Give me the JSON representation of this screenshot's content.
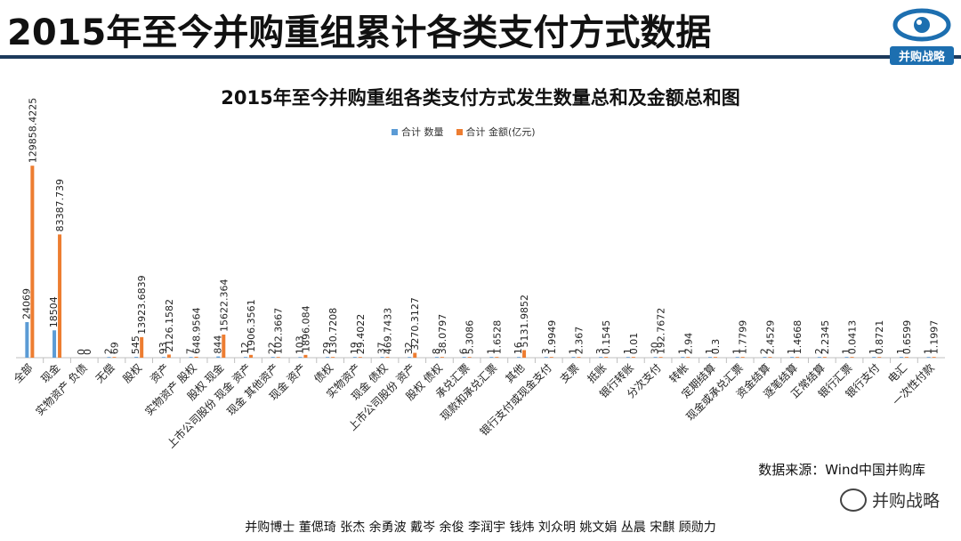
{
  "header": {
    "title": "2015年至今并购重组累计各类支付方式数据",
    "logo_text": "并购战略"
  },
  "source_text": "数据来源：Wind中国并购库",
  "watermark_text": "并购战略",
  "credits_text": "并购博士 董偲琦 张杰 余勇波 戴岑 余俊 李润宇 钱炜 刘众明 姚文娟 丛晨 宋麒 顾勋力",
  "colors": {
    "count": "#5b9bd5",
    "amount": "#ed7d31",
    "banner_rule": "#1d3a5c",
    "logo": "#1d6fb0"
  },
  "chart_data": {
    "type": "bar",
    "title": "2015年至今并购重组各类支付方式发生数量总和及金额总和图",
    "legend_position": "top-center",
    "grid": false,
    "ylim": [
      0,
      130000
    ],
    "categories": [
      "全部",
      "现金",
      "实物资产 负债",
      "无偿",
      "股权",
      "资产",
      "实物资产 股权",
      "股权 现金",
      "上市公司股份 现金 资产",
      "现金 其他资产",
      "现金 资产",
      "债权",
      "实物资产",
      "现金 债权",
      "上市公司股份 资产",
      "股权 债权",
      "承兑汇票",
      "现款和承兑汇票",
      "其他",
      "银行支付或现金支付",
      "支票",
      "抵账",
      "银行转账",
      "分次支付",
      "转帐",
      "定期结算",
      "现金或承兑汇票",
      "资金结算",
      "逐笔结算",
      "正常结算",
      "银行汇票",
      "银行支付",
      "电汇",
      "一次性付款"
    ],
    "series": [
      {
        "name": "合计 数量",
        "labels": [
          "24069",
          "18504",
          "0",
          "2",
          "545",
          "93",
          "7",
          "844",
          "12",
          "22",
          "103",
          "29",
          "19",
          "37",
          "32",
          "8",
          "6",
          "1",
          "16",
          "3",
          "1",
          "3",
          "1",
          "30",
          "1",
          "1",
          "1",
          "2",
          "1",
          "2",
          "1",
          "1",
          "1",
          "1"
        ],
        "values": [
          24069,
          18504,
          0,
          2,
          545,
          93,
          7,
          844,
          12,
          22,
          103,
          29,
          19,
          37,
          32,
          8,
          6,
          1,
          16,
          3,
          1,
          3,
          1,
          30,
          1,
          1,
          1,
          2,
          1,
          2,
          1,
          1,
          1,
          1
        ]
      },
      {
        "name": "合计 金额(亿元)",
        "labels": [
          "129858.4225",
          "83387.739",
          "0",
          "69",
          "13923.6839",
          "2126.1582",
          "648.9564",
          "15622.364",
          "1906.3561",
          "102.3667",
          "1896.084",
          "130.7208",
          "29.4022",
          "469.7433",
          "3270.3127",
          "38.0797",
          "5.3086",
          "1.6528",
          "5131.9852",
          "1.9949",
          "2.367",
          "0.1545",
          "0.01",
          "192.7672",
          "2.94",
          "0.3",
          "1.7799",
          "2.4529",
          "1.4668",
          "2.2345",
          "0.0413",
          "0.8721",
          "0.6599",
          "1.1997"
        ],
        "values": [
          129858.4225,
          83387.739,
          0,
          69,
          13923.6839,
          2126.1582,
          648.9564,
          15622.364,
          1906.3561,
          102.3667,
          1896.084,
          130.7208,
          29.4022,
          469.7433,
          3270.3127,
          38.0797,
          5.3086,
          1.6528,
          5131.9852,
          1.9949,
          2.367,
          0.1545,
          0.01,
          192.7672,
          2.94,
          0.3,
          1.7799,
          2.4529,
          1.4668,
          2.2345,
          0.0413,
          0.8721,
          0.6599,
          1.1997
        ]
      }
    ]
  }
}
